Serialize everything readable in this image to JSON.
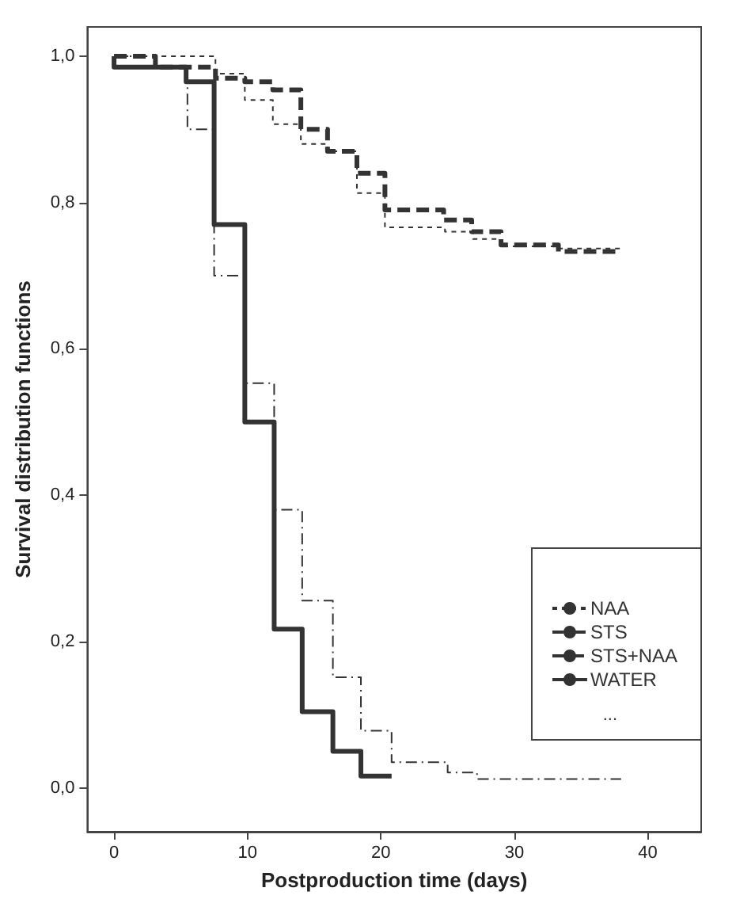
{
  "chart_data": {
    "type": "step",
    "xlabel": "Postproduction time (days)",
    "ylabel": "Survival distribution functions",
    "xlim": [
      -2,
      44
    ],
    "ylim": [
      -0.06,
      1.04
    ],
    "xticks": [
      0,
      10,
      20,
      30,
      40
    ],
    "yticks": [
      {
        "value": 0,
        "label": "0,0"
      },
      {
        "value": 0.2,
        "label": "0,2"
      },
      {
        "value": 0.4,
        "label": "0,4"
      },
      {
        "value": 0.6,
        "label": "0,6"
      },
      {
        "value": 0.8,
        "label": "0,8"
      },
      {
        "value": 1,
        "label": "1,0"
      }
    ],
    "grid": false,
    "legend": "bottom right",
    "marker": "none",
    "annotations": [
      "..."
    ],
    "series": [
      {
        "name": "NAA",
        "color": "#333333",
        "line_style": "dashed",
        "x": [
          0,
          7.6,
          9.8,
          11.9,
          14,
          16,
          18.2,
          20.3,
          24.8,
          26.9,
          29,
          33.3,
          38
        ],
        "values": [
          1,
          0.976,
          0.94,
          0.907,
          0.88,
          0.87,
          0.813,
          0.766,
          0.76,
          0.75,
          0.74,
          0.737,
          0.737
        ]
      },
      {
        "name": "STS",
        "color": "#333333",
        "line_style": "dashed",
        "x": [
          0,
          3.1,
          5.5,
          7.5,
          9.8,
          12,
          14.1,
          16.4,
          18.5,
          20.8,
          25,
          27.2,
          38
        ],
        "values": [
          1,
          0.985,
          0.9,
          0.7,
          0.553,
          0.38,
          0.256,
          0.151,
          0.078,
          0.035,
          0.021,
          0.012,
          0.012
        ]
      },
      {
        "name": "STS+NAA",
        "color": "#333333",
        "line_style": "dashed",
        "x": [
          0,
          3.1,
          7.6,
          9.8,
          11.9,
          14,
          16,
          18.2,
          20.3,
          24.7,
          26.8,
          29,
          33.3,
          38
        ],
        "values": [
          1,
          0.985,
          0.97,
          0.965,
          0.954,
          0.9,
          0.87,
          0.84,
          0.79,
          0.776,
          0.76,
          0.742,
          0.733,
          0.733
        ]
      },
      {
        "name": "WATER",
        "color": "#333333",
        "line_style": "solid",
        "x": [
          0,
          0,
          5.4,
          7.5,
          9.8,
          12,
          14.1,
          16.4,
          18.5,
          20.8
        ],
        "values": [
          1,
          0.985,
          0.965,
          0.77,
          0.5,
          0.217,
          0.104,
          0.05,
          0.016,
          0.016
        ]
      }
    ]
  }
}
